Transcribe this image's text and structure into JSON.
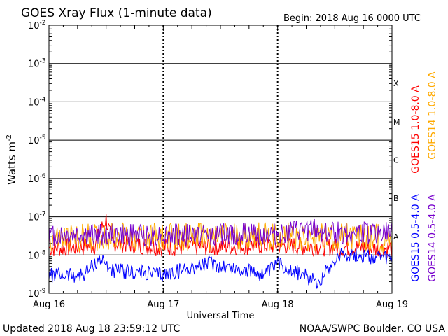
{
  "chart_data": {
    "type": "line",
    "title": "GOES Xray Flux (1-minute data)",
    "begin_label": "Begin:  2018 Aug 16 0000 UTC",
    "xlabel": "Universal Time",
    "ylabel_main": "Watts m",
    "ylabel_exp": "-2",
    "x_ticks": [
      "Aug 16",
      "Aug 17",
      "Aug 18",
      "Aug 19"
    ],
    "x_range_days": [
      0,
      3
    ],
    "y_scale": "log",
    "ylim": [
      1e-09,
      0.01
    ],
    "y_ticks": [
      {
        "base": "10",
        "exp": "-9"
      },
      {
        "base": "10",
        "exp": "-8"
      },
      {
        "base": "10",
        "exp": "-7"
      },
      {
        "base": "10",
        "exp": "-6"
      },
      {
        "base": "10",
        "exp": "-5"
      },
      {
        "base": "10",
        "exp": "-4"
      },
      {
        "base": "10",
        "exp": "-3"
      },
      {
        "base": "10",
        "exp": "-2"
      }
    ],
    "flare_classes": [
      "A",
      "B",
      "C",
      "M",
      "X"
    ],
    "series": [
      {
        "name": "GOES15 1.0-8.0 A",
        "color": "#ff0000",
        "x": [
          0,
          0.25,
          0.4,
          0.5,
          0.55,
          1.0,
          1.5,
          2.0,
          2.5,
          3.0
        ],
        "y": [
          1.5e-08,
          1.6e-08,
          1.8e-08,
          9e-08,
          2.1e-08,
          1.6e-08,
          1.7e-08,
          1.8e-08,
          1.6e-08,
          1.5e-08
        ]
      },
      {
        "name": "GOES14 1.0-8.0 A",
        "color": "#ffaa00",
        "x": [
          0,
          0.25,
          0.5,
          1.0,
          1.5,
          2.0,
          2.5,
          3.0
        ],
        "y": [
          2.6e-08,
          2.8e-08,
          3e-08,
          2.9e-08,
          3e-08,
          3.1e-08,
          2.8e-08,
          2.8e-08
        ]
      },
      {
        "name": "GOES15 0.5-4.0 A",
        "color": "#0000ff",
        "x": [
          0,
          0.3,
          0.45,
          0.55,
          1.0,
          1.4,
          1.9,
          2.0,
          2.35,
          2.55,
          2.8,
          3.0
        ],
        "y": [
          3e-09,
          3e-09,
          8e-09,
          4e-09,
          3e-09,
          6e-09,
          3e-09,
          6e-09,
          2e-09,
          1.1e-08,
          9e-09,
          7.5e-09
        ]
      },
      {
        "name": "GOES14 0.5-4.0 A",
        "color": "#7700cc",
        "x": [
          0,
          0.5,
          1.0,
          1.5,
          2.0,
          2.3,
          2.5,
          3.0
        ],
        "y": [
          3.2e-08,
          3.4e-08,
          3.3e-08,
          3.4e-08,
          3.5e-08,
          4.5e-08,
          3.8e-08,
          3.7e-08
        ]
      }
    ]
  },
  "footer": {
    "updated": "Updated 2018 Aug 18 23:59:12 UTC",
    "source": "NOAA/SWPC Boulder, CO USA"
  }
}
